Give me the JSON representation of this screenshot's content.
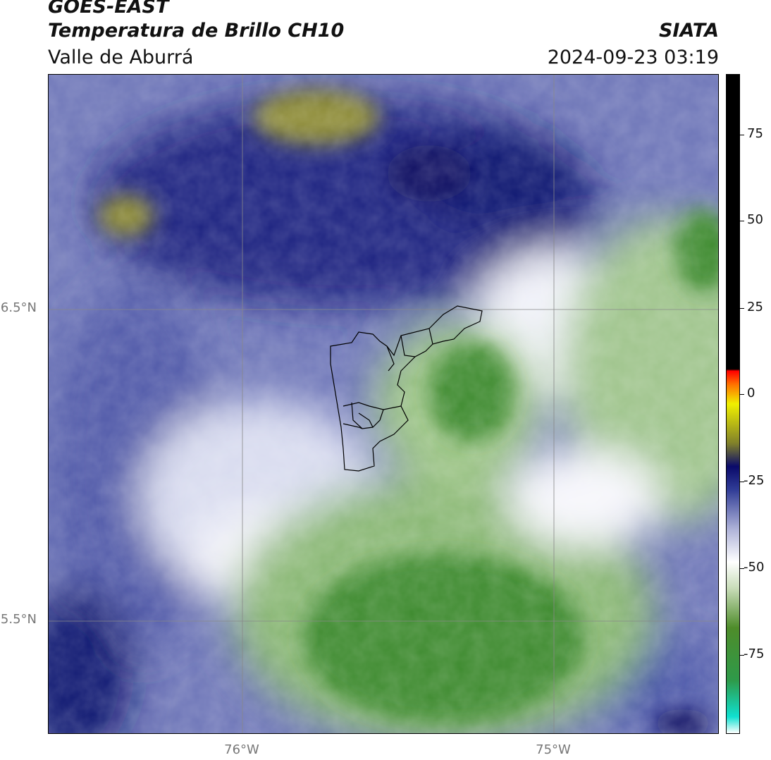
{
  "header": {
    "title_line1": "GOES-EAST",
    "title_line2": "Temperatura de Brillo CH10",
    "title_line3": "Valle de Aburrá",
    "org": "SIATA",
    "timestamp": "2024-09-23 03:19"
  },
  "map": {
    "lat_labels": [
      "6.5°N",
      "5.5°N"
    ],
    "lon_labels": [
      "76°W",
      "75°W"
    ],
    "colors": {
      "deep_blue": "#0c1470",
      "mid_blue": "#3a44a0",
      "light_blue": "#9aa0d0",
      "pale": "#e6e8f4",
      "green_dark": "#3c8a2e",
      "green_mid": "#78ad62",
      "green_light": "#c6dcb8",
      "olive": "#8c8a34"
    }
  },
  "colorbar": {
    "ticks": [
      "75",
      "50",
      "25",
      "0",
      "-25",
      "-50",
      "-75"
    ],
    "stops": [
      "#ffffff",
      "#10e0d0",
      "#2e9a4a",
      "#4e8c2a",
      "#c8dcb8",
      "#ffffff",
      "#aeb2d8",
      "#303c96",
      "#0a0a6a",
      "#80802a",
      "#f0f000",
      "#ff7000",
      "#ff0000",
      "#000000",
      "#000000"
    ]
  }
}
